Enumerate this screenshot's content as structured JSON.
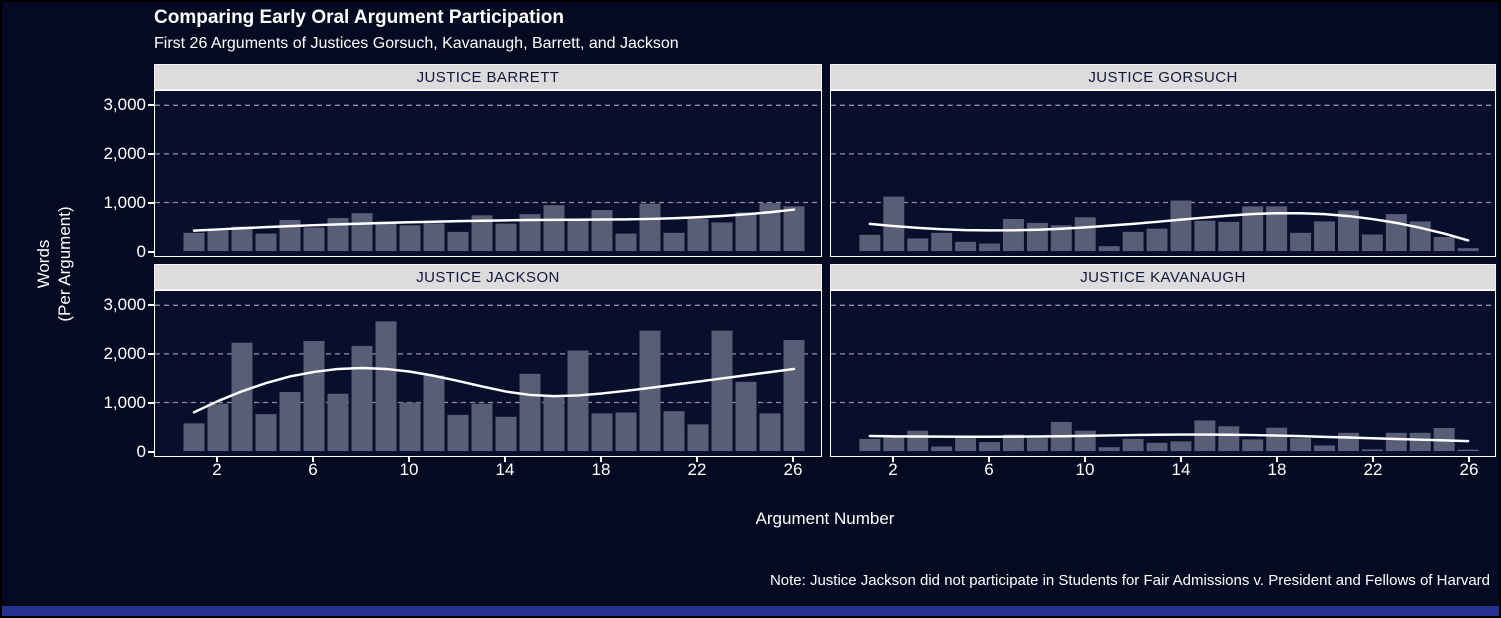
{
  "header": {
    "title": "Comparing Early Oral Argument Participation",
    "subtitle": "First 26 Arguments of Justices Gorsuch, Kavanaugh, Barrett, and Jackson"
  },
  "note": "Note: Justice Jackson did not participate in Students for Fair Admissions v. President and Fellows of Harvard",
  "axes": {
    "y_title_line1": "Words",
    "y_title_line2": "(Per Argument)",
    "x_title": "Argument Number",
    "y_ticks": [
      {
        "label": "3,000",
        "value": 3000
      },
      {
        "label": "2,000",
        "value": 2000
      },
      {
        "label": "1,000",
        "value": 1000
      },
      {
        "label": "0",
        "value": 0
      }
    ],
    "x_ticks": [
      2,
      6,
      10,
      14,
      18,
      22,
      26
    ],
    "ylim": [
      0,
      3000
    ],
    "grid": "dashed horizontal major lines",
    "legend": "none"
  },
  "colors": {
    "page_background": "#040a21",
    "panel_background": "#070f2c",
    "bar": "#585e76",
    "trend_line": "#ffffff",
    "strip_background": "#dcdcdc",
    "strip_text": "#15173d",
    "gridline": "#a7aab8",
    "panel_border": "#ffffff",
    "text": "#ffffff",
    "footer_strip": "#27318f"
  },
  "chart_data": {
    "type": "bar",
    "title": "Comparing Early Oral Argument Participation",
    "subtitle": "First 26 Arguments of Justices Gorsuch, Kavanaugh, Barrett, and Jackson",
    "xlabel": "Argument Number",
    "ylabel": "Words (Per Argument)",
    "ylim": [
      0,
      3000
    ],
    "x": [
      1,
      2,
      3,
      4,
      5,
      6,
      7,
      8,
      9,
      10,
      11,
      12,
      13,
      14,
      15,
      16,
      17,
      18,
      19,
      20,
      21,
      22,
      23,
      24,
      25,
      26
    ],
    "panels": [
      {
        "label": "JUSTICE BARRETT",
        "values": [
          375,
          420,
          505,
          360,
          640,
          485,
          680,
          780,
          600,
          530,
          570,
          395,
          735,
          565,
          760,
          945,
          620,
          845,
          360,
          975,
          375,
          665,
          590,
          795,
          985,
          920
        ],
        "trend": [
          420,
          445,
          470,
          492,
          513,
          532,
          550,
          566,
          580,
          593,
          605,
          616,
          625,
          632,
          638,
          642,
          645,
          648,
          653,
          662,
          676,
          696,
          722,
          756,
          800,
          855
        ]
      },
      {
        "label": "JUSTICE GORSUCH",
        "values": [
          335,
          1120,
          260,
          375,
          190,
          155,
          660,
          580,
          530,
          695,
          100,
          395,
          460,
          1040,
          625,
          600,
          920,
          920,
          375,
          610,
          835,
          340,
          760,
          610,
          290,
          60
        ],
        "trend": [
          560,
          515,
          478,
          450,
          432,
          425,
          428,
          440,
          460,
          488,
          522,
          560,
          602,
          646,
          690,
          730,
          762,
          780,
          780,
          760,
          720,
          660,
          580,
          478,
          360,
          220
        ]
      },
      {
        "label": "JUSTICE JACKSON",
        "values": [
          570,
          975,
          2230,
          760,
          1215,
          2265,
          1180,
          2165,
          2670,
          1000,
          1555,
          745,
          975,
          705,
          1590,
          1120,
          2070,
          775,
          795,
          2480,
          820,
          550,
          2480,
          1425,
          775,
          2285
        ],
        "trend": [
          800,
          1030,
          1230,
          1400,
          1535,
          1630,
          1690,
          1710,
          1690,
          1635,
          1550,
          1445,
          1330,
          1225,
          1155,
          1130,
          1145,
          1185,
          1240,
          1300,
          1365,
          1430,
          1495,
          1560,
          1625,
          1690
        ]
      },
      {
        "label": "JUSTICE KAVANAUGH",
        "values": [
          250,
          300,
          420,
          95,
          265,
          185,
          340,
          265,
          600,
          420,
          80,
          250,
          170,
          200,
          630,
          510,
          240,
          480,
          265,
          115,
          375,
          35,
          375,
          375,
          475,
          30
        ],
        "trend": [
          310,
          304,
          299,
          296,
          294,
          294,
          296,
          300,
          306,
          314,
          322,
          330,
          336,
          340,
          340,
          336,
          329,
          319,
          307,
          293,
          279,
          264,
          249,
          234,
          219,
          205
        ]
      }
    ]
  }
}
